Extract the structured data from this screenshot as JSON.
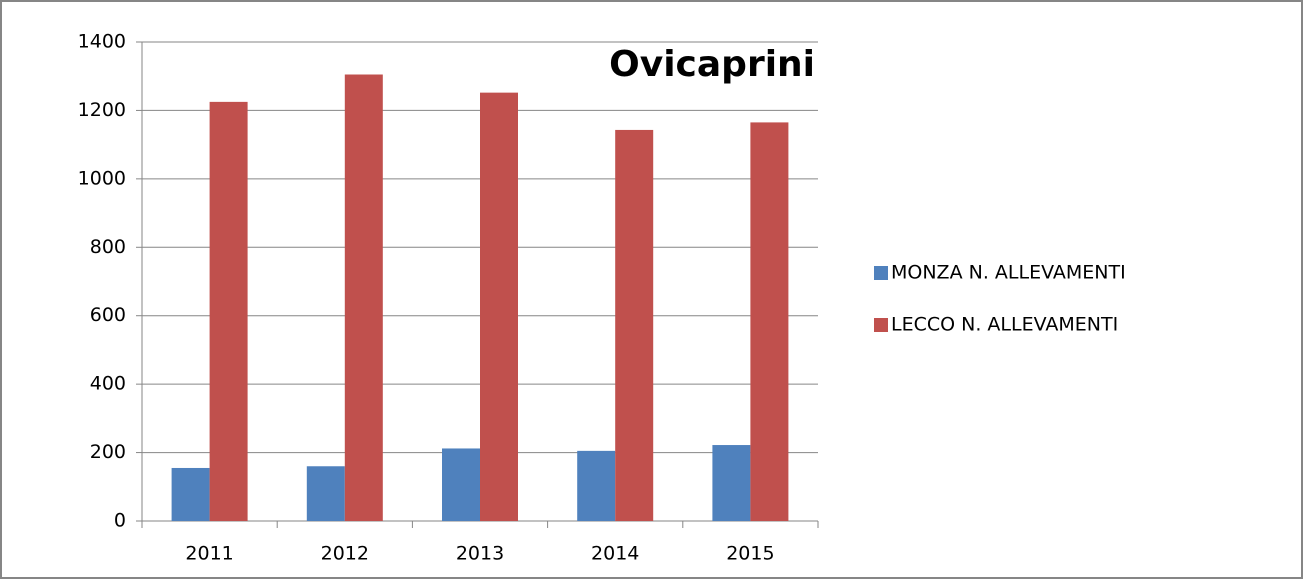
{
  "chart_data": {
    "type": "bar",
    "title": "Ovicaprini",
    "categories": [
      "2011",
      "2012",
      "2013",
      "2014",
      "2015"
    ],
    "series": [
      {
        "name": "MONZA N. ALLEVAMENTI",
        "color": "#4f81bd",
        "values": [
          155,
          160,
          212,
          205,
          222
        ]
      },
      {
        "name": "LECCO N. ALLEVAMENTI",
        "color": "#c0504d",
        "values": [
          1225,
          1305,
          1252,
          1143,
          1165
        ]
      }
    ],
    "ylim": [
      0,
      1400
    ],
    "yticks": [
      0,
      200,
      400,
      600,
      800,
      1000,
      1200,
      1400
    ],
    "grid": true,
    "legend": "right"
  }
}
